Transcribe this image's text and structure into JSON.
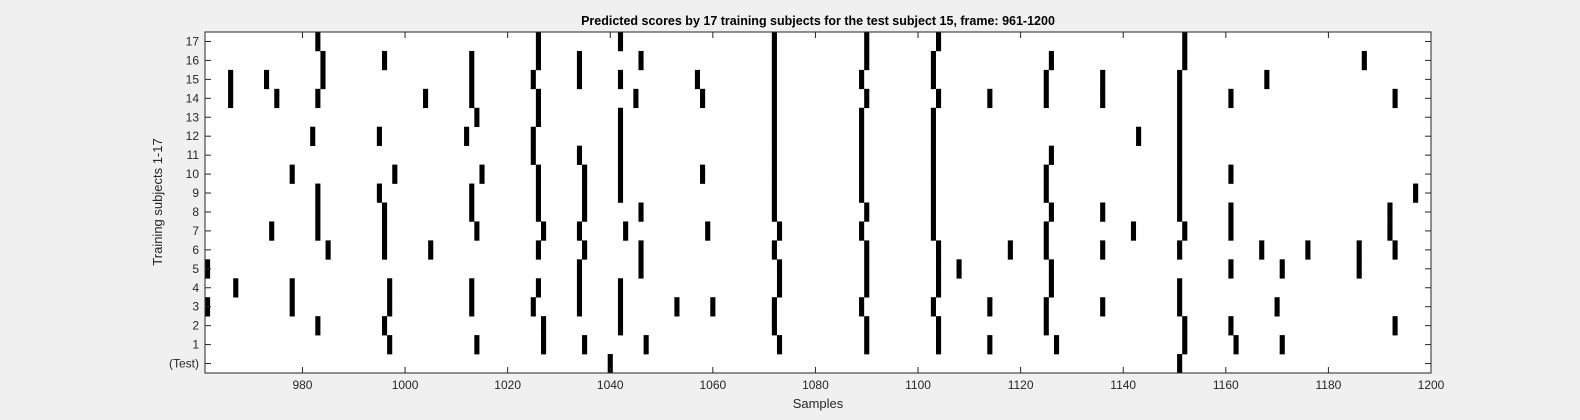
{
  "chart_data": {
    "type": "heatmap",
    "title": "Predicted scores by 17 training subjects for the test subject 15, frame: 961-1200",
    "xlabel": "Samples",
    "ylabel": "Training subjects 1-17",
    "xlim": [
      961,
      1200
    ],
    "x_ticks": [
      980,
      1000,
      1020,
      1040,
      1060,
      1080,
      1100,
      1120,
      1140,
      1160,
      1180,
      1200
    ],
    "y_tick_labels": [
      "(Test)",
      "1",
      "2",
      "3",
      "4",
      "5",
      "6",
      "7",
      "8",
      "9",
      "10",
      "11",
      "12",
      "13",
      "14",
      "15",
      "16",
      "17"
    ],
    "grid": false,
    "colors": {
      "background": "#f0f0f0",
      "plot_area": "#ffffff",
      "mark": "#000000"
    },
    "rows": [
      {
        "label": "(Test)",
        "x": [
          1040,
          1151
        ]
      },
      {
        "label": "1",
        "x": [
          997,
          1014,
          1027,
          1035,
          1047,
          1073,
          1090,
          1104,
          1114,
          1127,
          1152,
          1162,
          1171
        ]
      },
      {
        "label": "2",
        "x": [
          983,
          996,
          1027,
          1042,
          1072,
          1090,
          1104,
          1125,
          1152,
          1161,
          1193
        ]
      },
      {
        "label": "3",
        "x": [
          961,
          978,
          997,
          1013,
          1025,
          1034,
          1042,
          1053,
          1060,
          1072,
          1089,
          1103,
          1114,
          1125,
          1136,
          1151,
          1170
        ]
      },
      {
        "label": "4",
        "x": [
          967,
          978,
          997,
          1013,
          1026,
          1034,
          1042,
          1073,
          1090,
          1104,
          1126,
          1151
        ]
      },
      {
        "label": "5",
        "x": [
          961,
          1034,
          1046,
          1073,
          1090,
          1104,
          1108,
          1126,
          1161,
          1171,
          1186
        ]
      },
      {
        "label": "6",
        "x": [
          985,
          996,
          1005,
          1026,
          1035,
          1046,
          1072,
          1090,
          1104,
          1118,
          1125,
          1136,
          1151,
          1167,
          1176,
          1186,
          1193
        ]
      },
      {
        "label": "7",
        "x": [
          974,
          983,
          996,
          1014,
          1027,
          1034,
          1043,
          1059,
          1073,
          1089,
          1103,
          1125,
          1142,
          1152,
          1161,
          1192
        ]
      },
      {
        "label": "8",
        "x": [
          983,
          996,
          1013,
          1026,
          1035,
          1046,
          1072,
          1090,
          1103,
          1126,
          1136,
          1151,
          1161,
          1192
        ]
      },
      {
        "label": "9",
        "x": [
          983,
          995,
          1013,
          1026,
          1035,
          1042,
          1072,
          1089,
          1103,
          1125,
          1151,
          1197
        ]
      },
      {
        "label": "10",
        "x": [
          978,
          998,
          1015,
          1026,
          1035,
          1042,
          1058,
          1072,
          1089,
          1103,
          1125,
          1151,
          1161
        ]
      },
      {
        "label": "11",
        "x": [
          1025,
          1034,
          1042,
          1072,
          1089,
          1103,
          1126,
          1151
        ]
      },
      {
        "label": "12",
        "x": [
          982,
          995,
          1012,
          1025,
          1042,
          1072,
          1089,
          1103,
          1143,
          1151
        ]
      },
      {
        "label": "13",
        "x": [
          1014,
          1026,
          1042,
          1072,
          1089,
          1103,
          1151
        ]
      },
      {
        "label": "14",
        "x": [
          966,
          975,
          983,
          1004,
          1013,
          1026,
          1045,
          1058,
          1072,
          1090,
          1104,
          1114,
          1125,
          1136,
          1151,
          1161,
          1193
        ]
      },
      {
        "label": "15",
        "x": [
          966,
          973,
          984,
          1013,
          1025,
          1034,
          1042,
          1057,
          1072,
          1089,
          1103,
          1125,
          1136,
          1151,
          1168
        ]
      },
      {
        "label": "16",
        "x": [
          984,
          996,
          1013,
          1026,
          1034,
          1046,
          1072,
          1090,
          1103,
          1126,
          1152,
          1187
        ]
      },
      {
        "label": "17",
        "x": [
          983,
          1026,
          1042,
          1072,
          1090,
          1104,
          1152
        ]
      }
    ]
  }
}
